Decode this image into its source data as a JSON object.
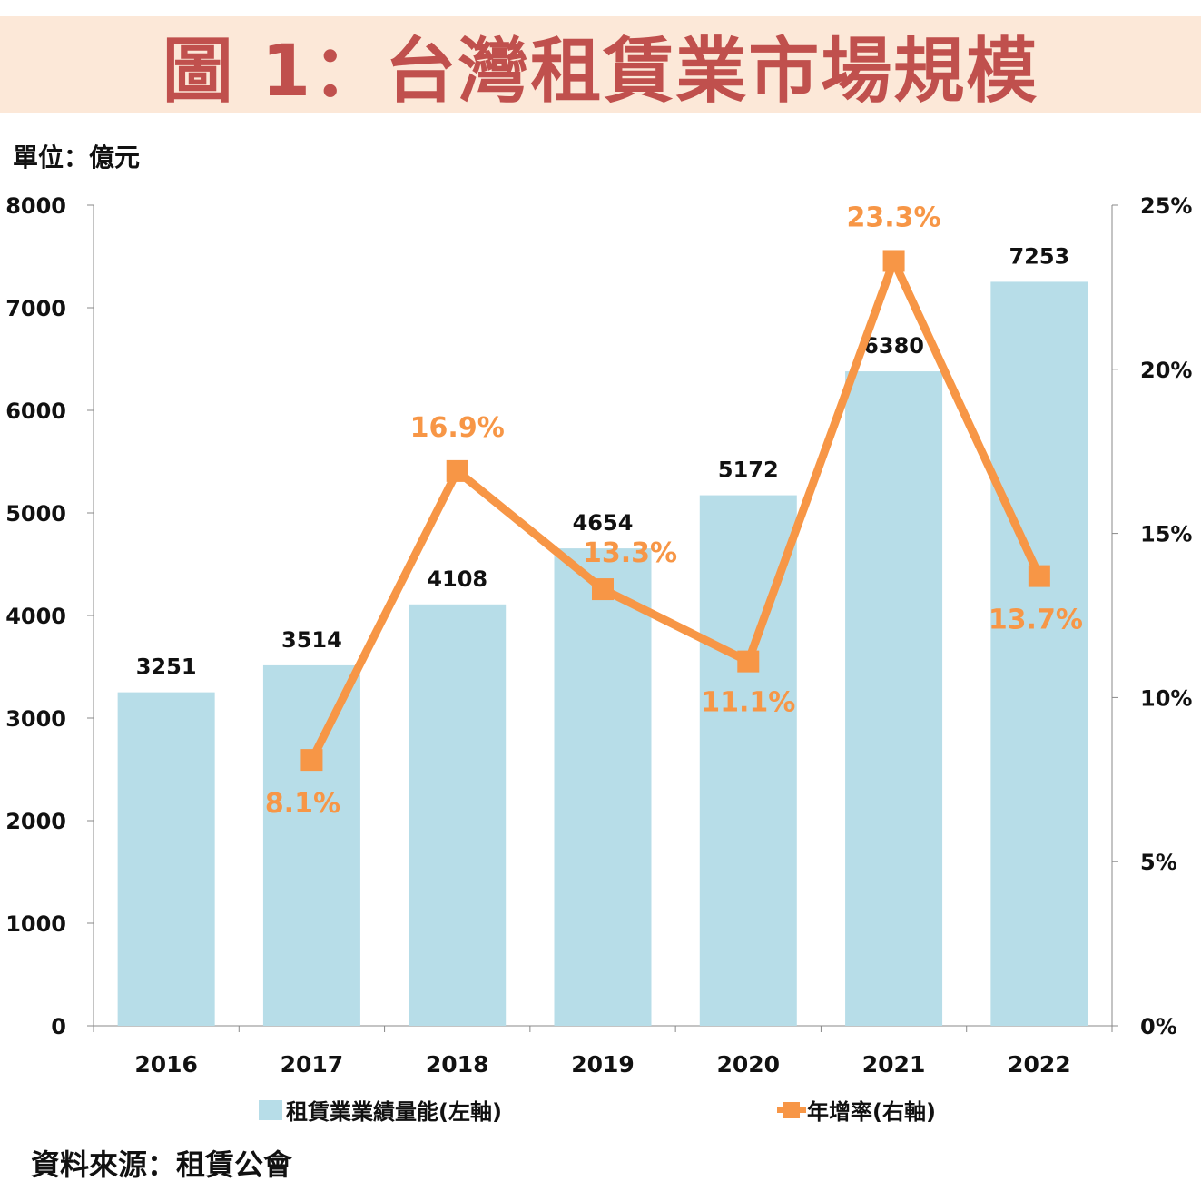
{
  "title": "圖 1：台灣租賃業市場規模",
  "unit_label": "單位：億元",
  "source": "資料來源：租賃公會",
  "chart_data": {
    "type": "bar+line",
    "categories": [
      "2016",
      "2017",
      "2018",
      "2019",
      "2020",
      "2021",
      "2022"
    ],
    "series": [
      {
        "name": "租賃業業績量能(左軸)",
        "type": "bar",
        "axis": "left",
        "color": "#b7dde8",
        "values": [
          3251,
          3514,
          4108,
          4654,
          5172,
          6380,
          7253
        ],
        "labels": [
          "3251",
          "3514",
          "4108",
          "4654",
          "5172",
          "6380",
          "7253"
        ]
      },
      {
        "name": "年增率(右軸)",
        "type": "line",
        "axis": "right",
        "color": "#f79646",
        "values": [
          null,
          8.1,
          16.9,
          13.3,
          11.1,
          23.3,
          13.7
        ],
        "labels": [
          "",
          "8.1%",
          "16.9%",
          "13.3%",
          "11.1%",
          "23.3%",
          "13.7%"
        ]
      }
    ],
    "y_left": {
      "range": [
        0,
        8000
      ],
      "ticks": [
        "0",
        "1000",
        "2000",
        "3000",
        "4000",
        "5000",
        "6000",
        "7000",
        "8000"
      ]
    },
    "y_right": {
      "range": [
        0,
        25
      ],
      "ticks": [
        "0%",
        "5%",
        "10%",
        "15%",
        "20%",
        "25%"
      ]
    },
    "grid": false,
    "legend": "bottom"
  }
}
